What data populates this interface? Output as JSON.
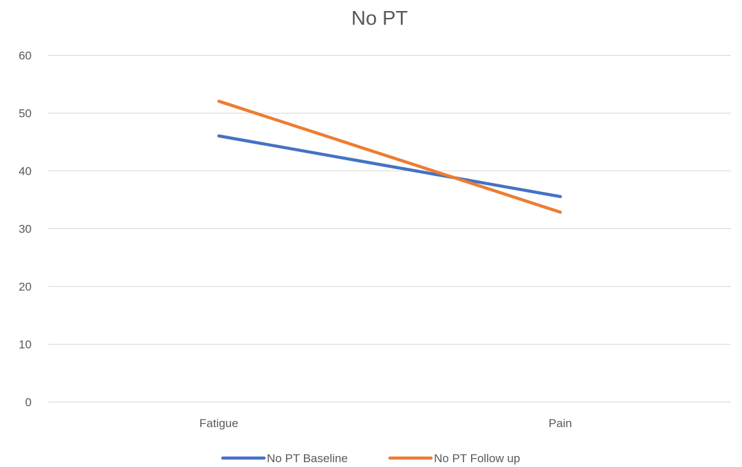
{
  "chart_data": {
    "type": "line",
    "title": "No PT",
    "categories": [
      "Fatigue",
      "Pain"
    ],
    "series": [
      {
        "name": "No PT Baseline",
        "values": [
          46,
          35.5
        ],
        "color": "#4472C4"
      },
      {
        "name": "No PT Follow up",
        "values": [
          52,
          32.8
        ],
        "color": "#ED7D31"
      }
    ],
    "ylim": [
      0,
      60
    ],
    "yticks": [
      0,
      10,
      20,
      30,
      40,
      50,
      60
    ],
    "grid": true,
    "legend": "bottom"
  }
}
